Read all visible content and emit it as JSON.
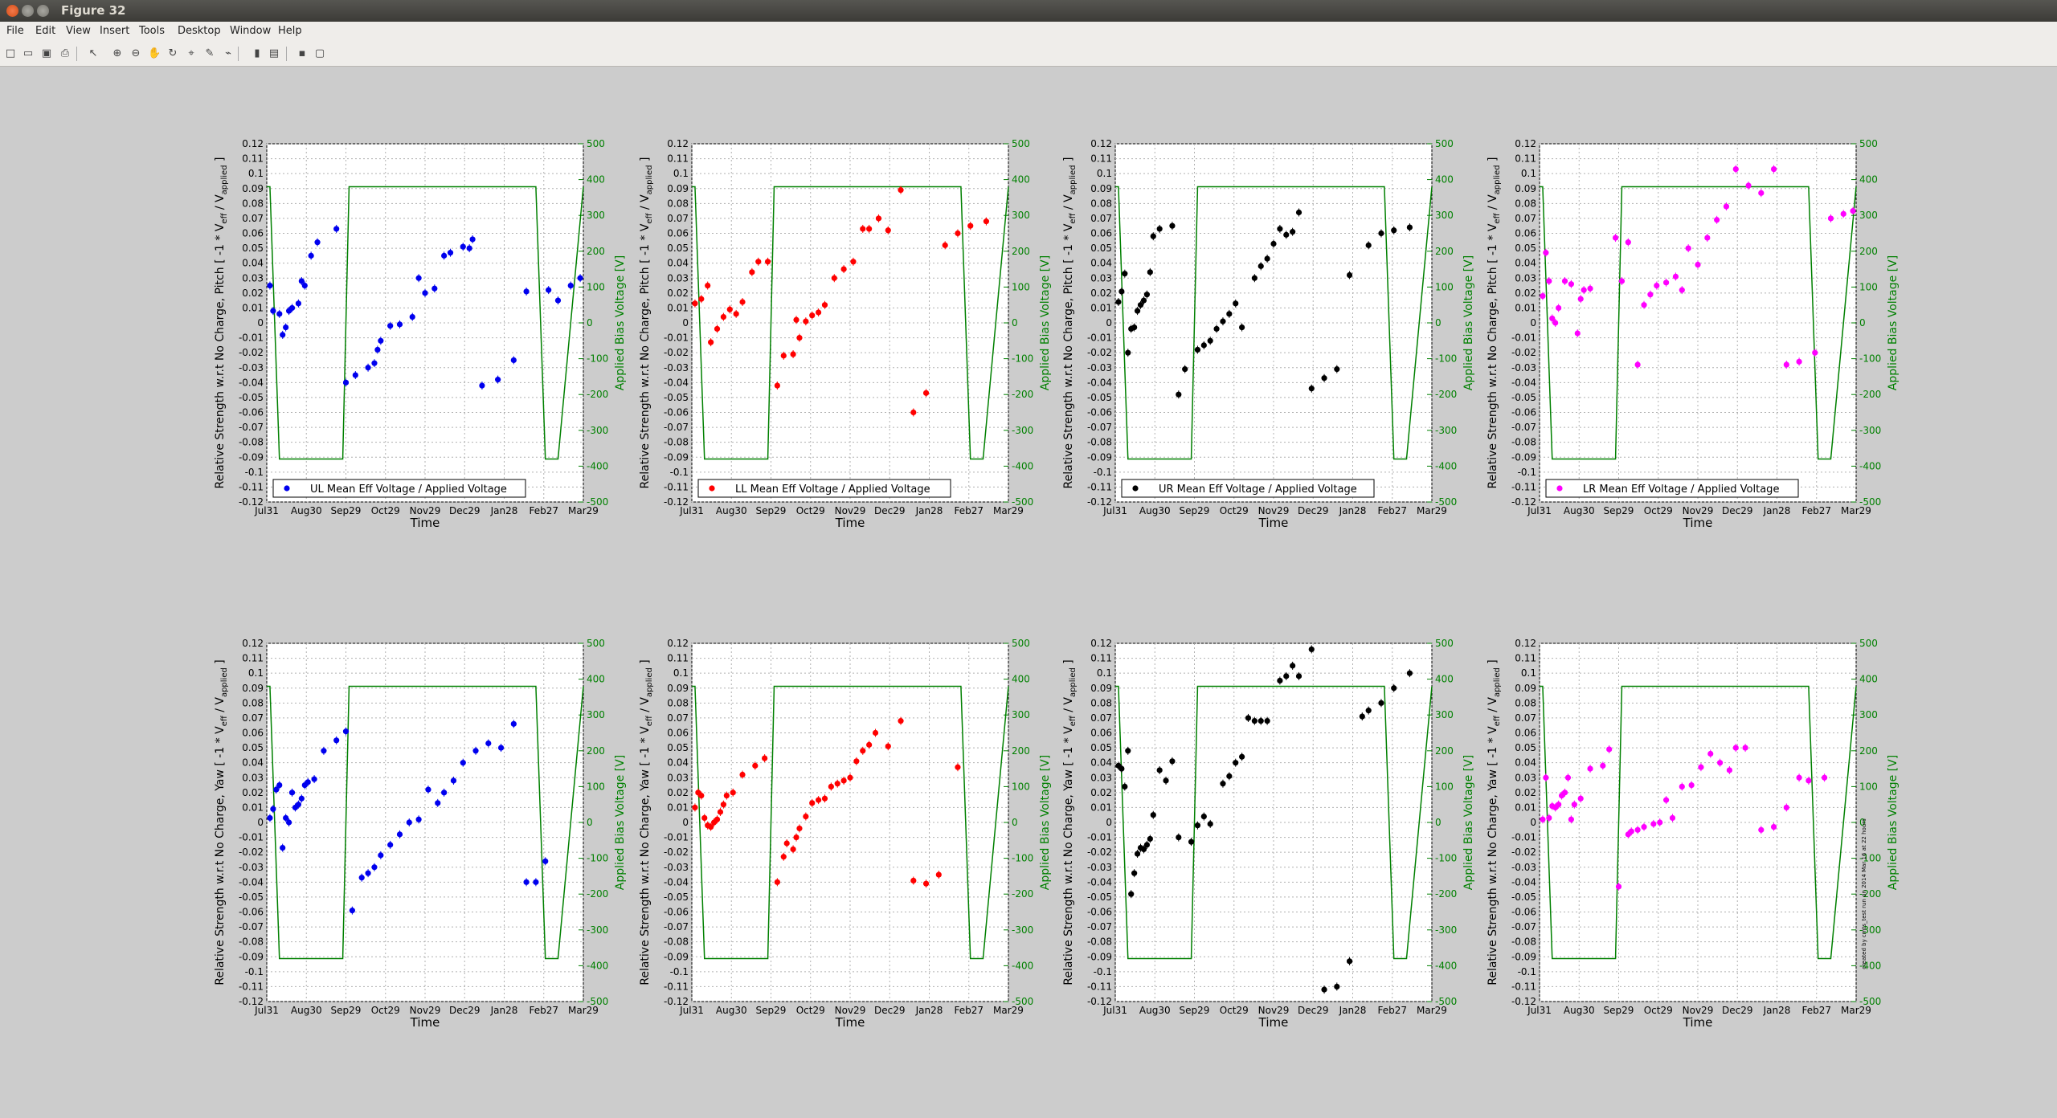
{
  "window": {
    "title": "Figure 32"
  },
  "menu": [
    "File",
    "Edit",
    "View",
    "Insert",
    "Tools",
    "Desktop",
    "Window",
    "Help"
  ],
  "toolbar": [
    {
      "icon": "new-figure-icon",
      "glyph": "□"
    },
    {
      "icon": "open-file-icon",
      "glyph": "▭"
    },
    {
      "icon": "save-icon",
      "glyph": "▣"
    },
    {
      "icon": "print-icon",
      "glyph": "⎙"
    },
    {
      "icon": "edit-plot-arrow-icon",
      "glyph": "↖"
    },
    {
      "icon": "zoom-in-icon",
      "glyph": "⊕"
    },
    {
      "icon": "zoom-out-icon",
      "glyph": "⊖"
    },
    {
      "icon": "pan-hand-icon",
      "glyph": "✋"
    },
    {
      "icon": "rotate-3d-icon",
      "glyph": "↻"
    },
    {
      "icon": "data-cursor-icon",
      "glyph": "⌖"
    },
    {
      "icon": "brush-icon",
      "glyph": "✎"
    },
    {
      "icon": "link-plot-icon",
      "glyph": "⌁"
    },
    {
      "icon": "insert-colorbar-icon",
      "glyph": "▮"
    },
    {
      "icon": "insert-legend-icon",
      "glyph": "▤"
    },
    {
      "icon": "hide-plot-tools-icon",
      "glyph": "▪"
    },
    {
      "icon": "show-plot-tools-icon",
      "glyph": "▢"
    }
  ],
  "watermark": "created by cmts_test run on 2014 Mar 16 at 22 hours",
  "chart_data": [
    {
      "type": "scatter",
      "color": "#0000ee",
      "legend": "UL Mean Eff Voltage / Applied Voltage",
      "ylabel": "Relative Strength w.r.t No Charge, Pitch [ -1 * V",
      "xlabel": "Time",
      "y2label": "Applied Bias Voltage [V]",
      "xticks": [
        "Jul31",
        "Aug30",
        "Sep29",
        "Oct29",
        "Nov29",
        "Dec29",
        "Jan28",
        "Feb27",
        "Mar29"
      ],
      "x": [
        1,
        2,
        4,
        5,
        6,
        7,
        8,
        10,
        11,
        12,
        14,
        16,
        22,
        25,
        28,
        32,
        34,
        35,
        36,
        39,
        42,
        46,
        48,
        50,
        53,
        56,
        58,
        62,
        64,
        65,
        68,
        73,
        78,
        82,
        89,
        92,
        96,
        99
      ],
      "y": [
        0.025,
        0.008,
        0.006,
        -0.008,
        -0.003,
        0.008,
        0.01,
        0.013,
        0.028,
        0.025,
        0.045,
        0.054,
        0.063,
        -0.04,
        -0.035,
        -0.03,
        -0.027,
        -0.018,
        -0.012,
        -0.002,
        -0.001,
        0.004,
        0.03,
        0.02,
        0.023,
        0.045,
        0.047,
        0.051,
        0.05,
        0.056,
        -0.042,
        -0.038,
        -0.025,
        0.021,
        0.022,
        0.015,
        0.025,
        0.03
      ],
      "ylim": [
        -0.12,
        0.12
      ],
      "y2lim": [
        -500,
        500
      ]
    },
    {
      "type": "scatter",
      "color": "#ff0000",
      "legend": "LL Mean Eff Voltage / Applied Voltage",
      "ylabel": "Relative Strength w.r.t No Charge, Pitch [ -1 * V",
      "xlabel": "Time",
      "y2label": "Applied Bias Voltage [V]",
      "xticks": [
        "Jul31",
        "Aug30",
        "Sep29",
        "Oct29",
        "Nov29",
        "Dec29",
        "Jan28",
        "Feb27",
        "Mar29"
      ],
      "x": [
        1,
        3,
        5,
        6,
        8,
        10,
        12,
        14,
        16,
        19,
        21,
        24,
        27,
        29,
        32,
        33,
        34,
        36,
        38,
        40,
        42,
        45,
        48,
        51,
        54,
        56,
        59,
        62,
        66,
        70,
        74,
        80,
        84,
        88,
        93
      ],
      "y": [
        0.013,
        0.016,
        0.025,
        -0.013,
        -0.004,
        0.004,
        0.009,
        0.006,
        0.014,
        0.034,
        0.041,
        0.041,
        -0.042,
        -0.022,
        -0.021,
        0.002,
        -0.01,
        0.001,
        0.005,
        0.007,
        0.012,
        0.03,
        0.036,
        0.041,
        0.063,
        0.063,
        0.07,
        0.062,
        0.089,
        -0.06,
        -0.047,
        0.052,
        0.06,
        0.065,
        0.068
      ],
      "ylim": [
        -0.12,
        0.12
      ],
      "y2lim": [
        -500,
        500
      ]
    },
    {
      "type": "scatter",
      "color": "#000000",
      "legend": "UR Mean Eff Voltage / Applied Voltage",
      "ylabel": "Relative Strength w.r.t No Charge, Pitch [ -1 * V",
      "xlabel": "Time",
      "y2label": "Applied Bias Voltage [V]",
      "xticks": [
        "Jul31",
        "Aug30",
        "Sep29",
        "Oct29",
        "Nov29",
        "Dec29",
        "Jan28",
        "Feb27",
        "Mar29"
      ],
      "x": [
        1,
        2,
        3,
        4,
        5,
        6,
        7,
        8,
        9,
        10,
        11,
        12,
        14,
        18,
        20,
        22,
        26,
        28,
        30,
        32,
        34,
        36,
        38,
        40,
        44,
        46,
        48,
        50,
        52,
        54,
        56,
        58,
        62,
        66,
        70,
        74,
        80,
        84,
        88,
        93
      ],
      "y": [
        0.014,
        0.021,
        0.033,
        -0.02,
        -0.004,
        -0.003,
        0.008,
        0.012,
        0.015,
        0.019,
        0.034,
        0.058,
        0.063,
        0.065,
        -0.048,
        -0.031,
        -0.018,
        -0.015,
        -0.012,
        -0.004,
        0.001,
        0.006,
        0.013,
        -0.003,
        0.03,
        0.038,
        0.043,
        0.053,
        0.063,
        0.059,
        0.061,
        0.074,
        -0.044,
        -0.037,
        -0.031,
        0.032,
        0.052,
        0.06,
        0.062,
        0.064
      ],
      "ylim": [
        -0.12,
        0.12
      ],
      "y2lim": [
        -500,
        500
      ]
    },
    {
      "type": "scatter",
      "color": "#ff00ff",
      "legend": "LR Mean Eff Voltage / Applied Voltage",
      "ylabel": "Relative Strength w.r.t No Charge, Pitch [ -1 * V",
      "xlabel": "Time",
      "y2label": "Applied Bias Voltage [V]",
      "xticks": [
        "Jul31",
        "Aug30",
        "Sep29",
        "Oct29",
        "Nov29",
        "Dec29",
        "Jan28",
        "Feb27",
        "Mar29"
      ],
      "x": [
        1,
        2,
        3,
        4,
        5,
        6,
        8,
        10,
        12,
        13,
        14,
        16,
        24,
        26,
        28,
        31,
        33,
        35,
        37,
        40,
        43,
        45,
        47,
        50,
        53,
        56,
        59,
        62,
        66,
        70,
        74,
        78,
        82,
        87,
        92,
        96,
        99
      ],
      "y": [
        0.018,
        0.047,
        0.028,
        0.003,
        0.0,
        0.01,
        0.028,
        0.026,
        -0.007,
        0.016,
        0.022,
        0.023,
        0.057,
        0.028,
        0.054,
        -0.028,
        0.012,
        0.019,
        0.025,
        0.027,
        0.031,
        0.022,
        0.05,
        0.039,
        0.057,
        0.069,
        0.078,
        0.103,
        0.092,
        0.087,
        0.103,
        -0.028,
        -0.026,
        -0.02,
        0.07,
        0.073,
        0.075
      ],
      "ylim": [
        -0.12,
        0.12
      ],
      "y2lim": [
        -500,
        500
      ]
    },
    {
      "type": "scatter",
      "color": "#0000ee",
      "legend": "",
      "ylabel": "Relative Strength w.r.t No Charge, Yaw [ -1 * V",
      "xlabel": "Time",
      "y2label": "Applied Bias Voltage [V]",
      "xticks": [
        "Jul31",
        "Aug30",
        "Sep29",
        "Oct29",
        "Nov29",
        "Dec29",
        "Jan28",
        "Feb27",
        "Mar29"
      ],
      "x": [
        1,
        2,
        3,
        4,
        5,
        6,
        7,
        8,
        9,
        10,
        11,
        12,
        13,
        15,
        18,
        22,
        25,
        27,
        30,
        32,
        34,
        36,
        39,
        42,
        45,
        48,
        51,
        54,
        56,
        59,
        62,
        66,
        70,
        74,
        78,
        82,
        85,
        88
      ],
      "y": [
        0.003,
        0.009,
        0.022,
        0.025,
        -0.017,
        0.003,
        0.0,
        0.02,
        0.01,
        0.012,
        0.016,
        0.025,
        0.027,
        0.029,
        0.048,
        0.055,
        0.061,
        -0.059,
        -0.037,
        -0.034,
        -0.03,
        -0.022,
        -0.015,
        -0.008,
        0.0,
        0.002,
        0.022,
        0.013,
        0.02,
        0.028,
        0.04,
        0.048,
        0.053,
        0.05,
        0.066,
        -0.04,
        -0.04,
        -0.026
      ],
      "ylim": [
        -0.12,
        0.12
      ],
      "y2lim": [
        -500,
        500
      ]
    },
    {
      "type": "scatter",
      "color": "#ff0000",
      "legend": "",
      "ylabel": "Relative Strength w.r.t No Charge, Yaw [ -1 * V",
      "xlabel": "Time",
      "y2label": "Applied Bias Voltage [V]",
      "xticks": [
        "Jul31",
        "Aug30",
        "Sep29",
        "Oct29",
        "Nov29",
        "Dec29",
        "Jan28",
        "Feb27",
        "Mar29"
      ],
      "x": [
        1,
        2,
        3,
        4,
        5,
        6,
        7,
        8,
        9,
        10,
        11,
        13,
        16,
        20,
        23,
        27,
        29,
        30,
        32,
        33,
        34,
        36,
        38,
        40,
        42,
        44,
        46,
        48,
        50,
        52,
        54,
        56,
        58,
        62,
        66,
        70,
        74,
        78,
        84
      ],
      "y": [
        0.01,
        0.02,
        0.018,
        0.003,
        -0.002,
        -0.003,
        0.0,
        0.002,
        0.007,
        0.012,
        0.018,
        0.02,
        0.032,
        0.038,
        0.043,
        -0.04,
        -0.023,
        -0.014,
        -0.018,
        -0.01,
        -0.004,
        0.004,
        0.013,
        0.015,
        0.016,
        0.024,
        0.026,
        0.028,
        0.03,
        0.041,
        0.048,
        0.052,
        0.06,
        0.051,
        0.068,
        -0.039,
        -0.041,
        -0.035,
        0.037
      ],
      "ylim": [
        -0.12,
        0.12
      ],
      "y2lim": [
        -500,
        500
      ]
    },
    {
      "type": "scatter",
      "color": "#000000",
      "legend": "",
      "ylabel": "Relative Strength w.r.t No Charge, Yaw [ -1 * V",
      "xlabel": "Time",
      "y2label": "Applied Bias Voltage [V]",
      "xticks": [
        "Jul31",
        "Aug30",
        "Sep29",
        "Oct29",
        "Nov29",
        "Dec29",
        "Jan28",
        "Feb27",
        "Mar29"
      ],
      "x": [
        1,
        2,
        3,
        4,
        5,
        6,
        7,
        8,
        9,
        10,
        11,
        12,
        14,
        16,
        18,
        20,
        24,
        26,
        28,
        30,
        34,
        36,
        38,
        40,
        42,
        44,
        46,
        48,
        52,
        54,
        56,
        58,
        62,
        66,
        70,
        74,
        78,
        80,
        84,
        88,
        93
      ],
      "y": [
        0.038,
        0.036,
        0.024,
        0.048,
        -0.048,
        -0.034,
        -0.021,
        -0.017,
        -0.018,
        -0.015,
        -0.011,
        0.005,
        0.035,
        0.028,
        0.041,
        -0.01,
        -0.013,
        -0.002,
        0.004,
        -0.001,
        0.026,
        0.031,
        0.04,
        0.044,
        0.07,
        0.068,
        0.068,
        0.068,
        0.095,
        0.098,
        0.105,
        0.098,
        0.116,
        -0.112,
        -0.11,
        -0.093,
        0.071,
        0.075,
        0.08,
        0.09,
        0.1
      ],
      "ylim": [
        -0.12,
        0.12
      ],
      "y2lim": [
        -500,
        500
      ]
    },
    {
      "type": "scatter",
      "color": "#ff00ff",
      "legend": "",
      "ylabel": "Relative Strength w.r.t No Charge, Yaw [ -1 * V",
      "xlabel": "Time",
      "y2label": "Applied Bias Voltage [V]",
      "xticks": [
        "Jul31",
        "Aug30",
        "Sep29",
        "Oct29",
        "Nov29",
        "Dec29",
        "Jan28",
        "Feb27",
        "Mar29"
      ],
      "x": [
        1,
        2,
        3,
        4,
        5,
        6,
        7,
        8,
        9,
        10,
        11,
        13,
        16,
        20,
        22,
        25,
        28,
        29,
        31,
        33,
        36,
        38,
        40,
        42,
        45,
        48,
        51,
        54,
        57,
        60,
        62,
        65,
        70,
        74,
        78,
        82,
        85,
        90
      ],
      "y": [
        0.002,
        0.03,
        0.003,
        0.011,
        0.01,
        0.012,
        0.018,
        0.02,
        0.03,
        0.002,
        0.012,
        0.016,
        0.036,
        0.038,
        0.049,
        -0.043,
        -0.008,
        -0.006,
        -0.005,
        -0.003,
        -0.001,
        0.0,
        0.015,
        0.003,
        0.024,
        0.025,
        0.037,
        0.046,
        0.04,
        0.035,
        0.05,
        0.05,
        -0.005,
        -0.003,
        0.01,
        0.03,
        0.028,
        0.03
      ],
      "ylim": [
        -0.12,
        0.12
      ],
      "y2lim": [
        -500,
        500
      ]
    }
  ]
}
